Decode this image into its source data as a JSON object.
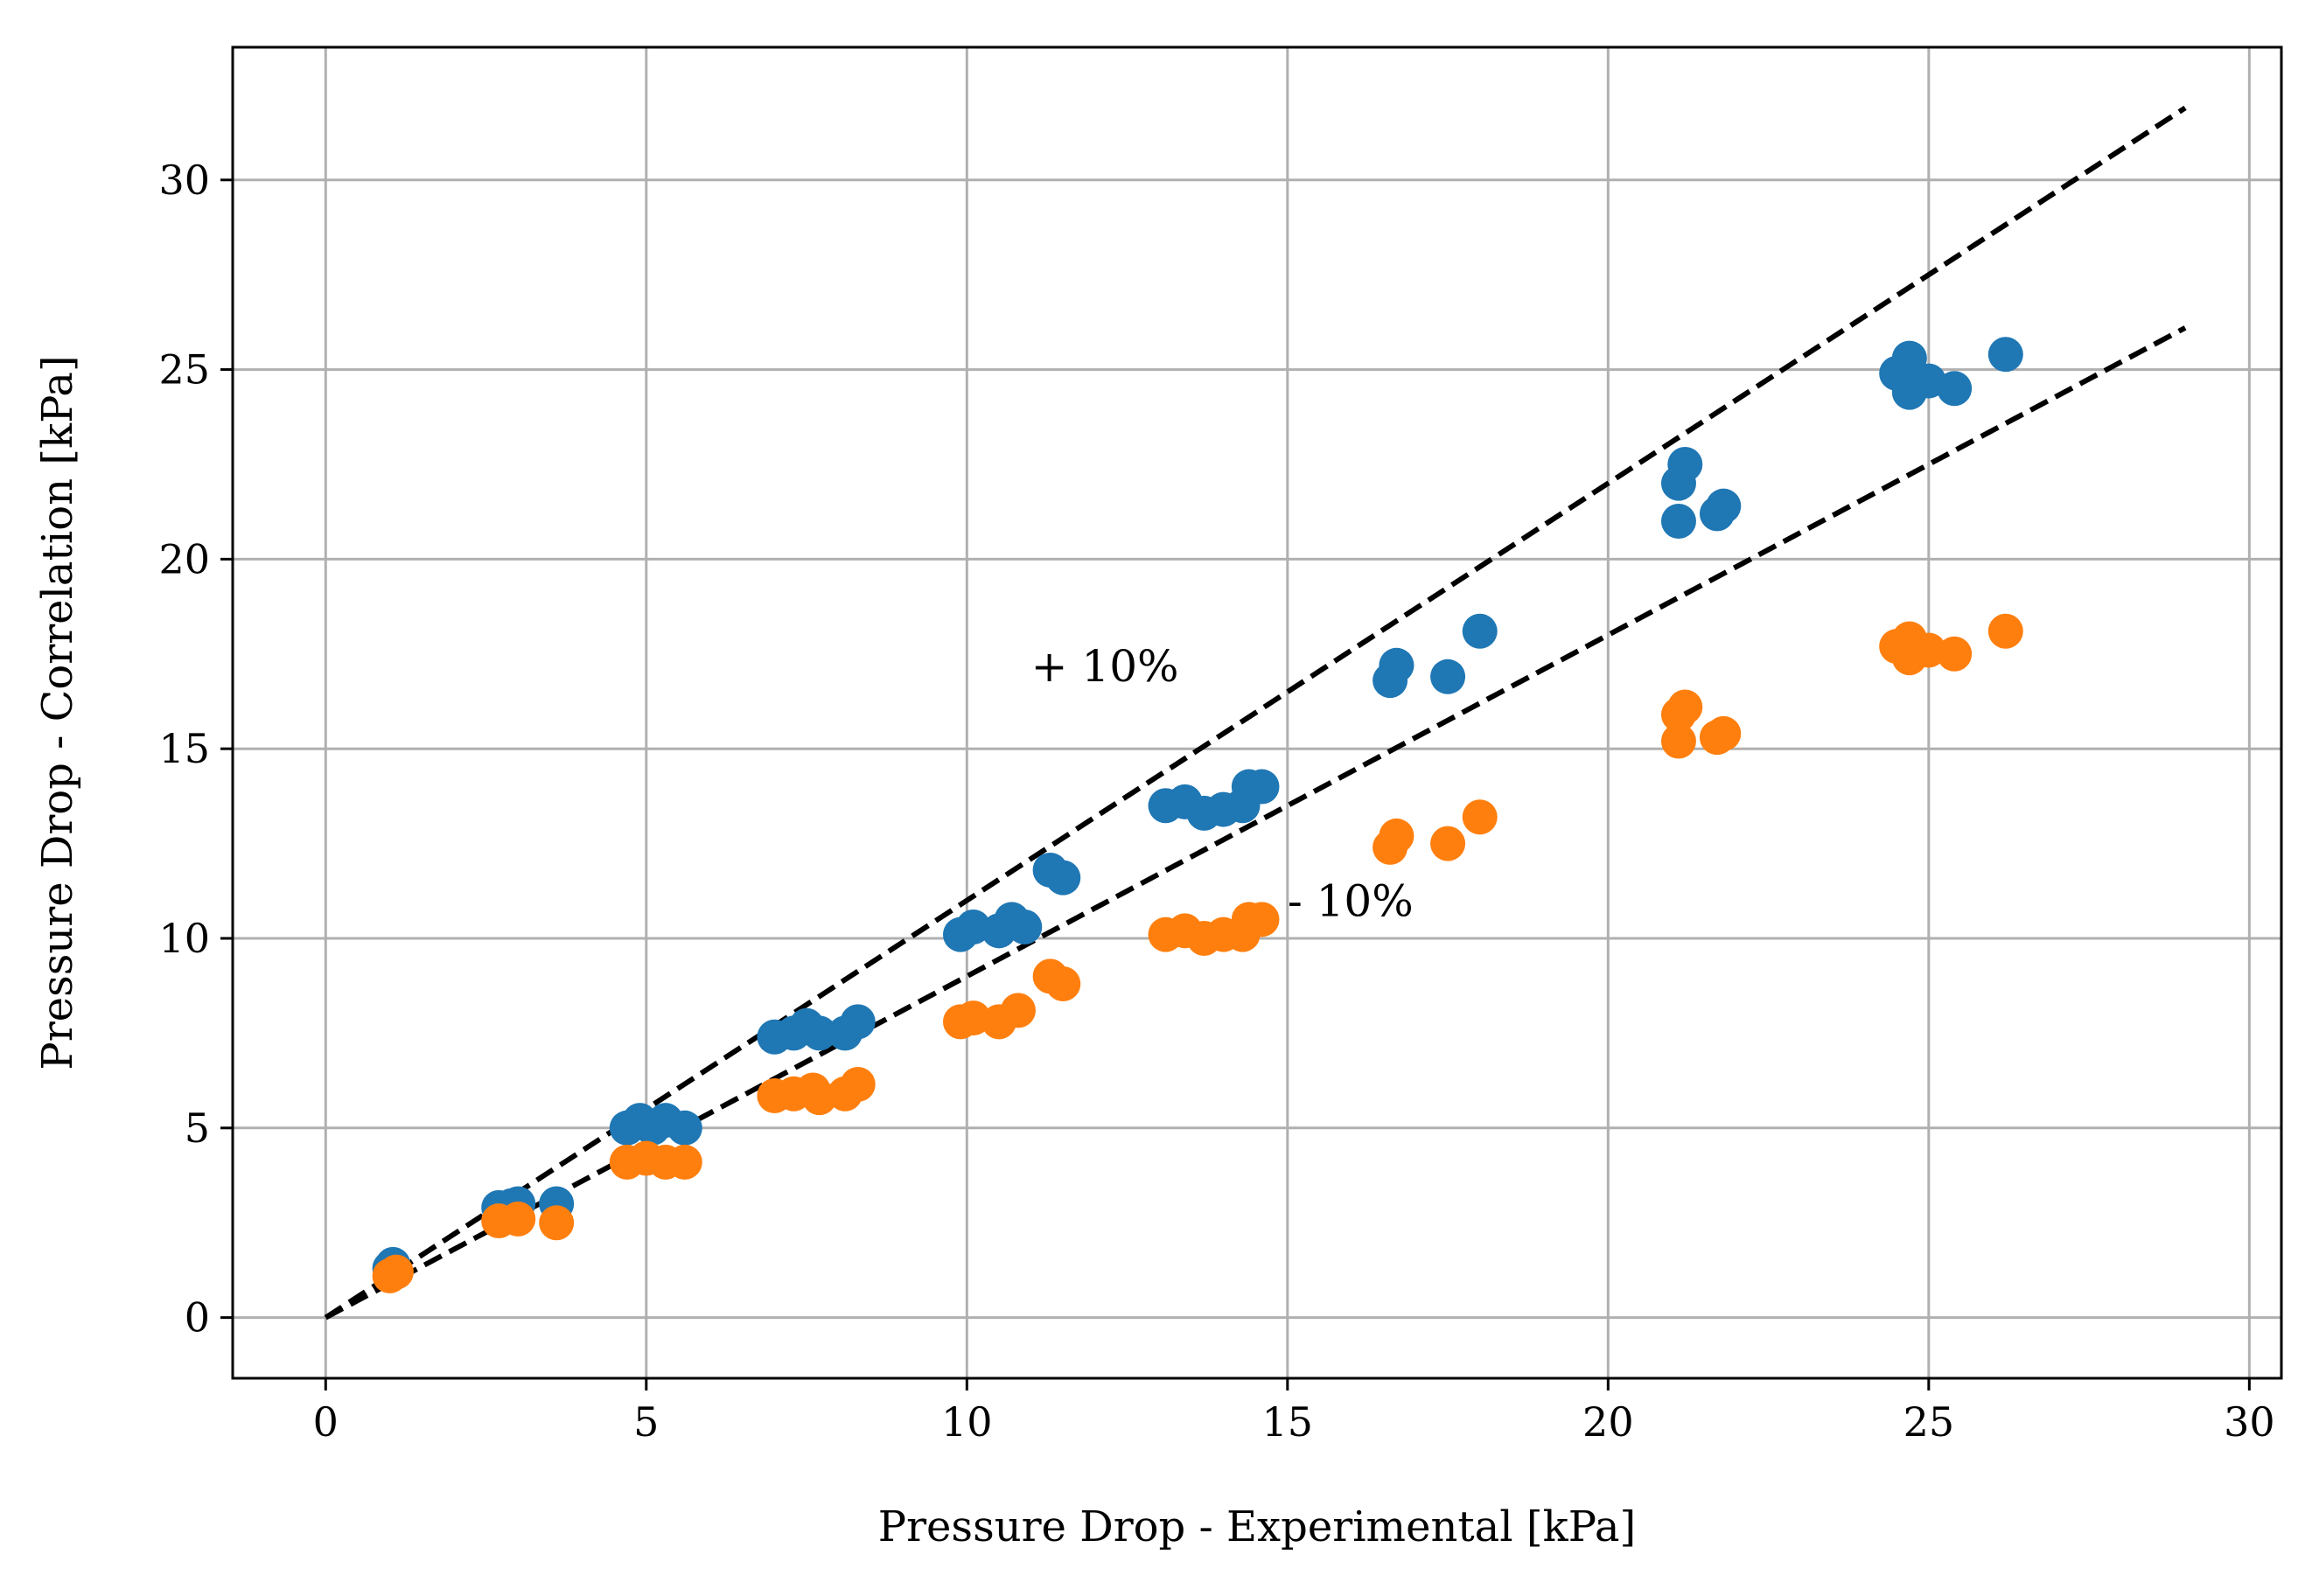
{
  "chart_data": {
    "type": "scatter",
    "xlabel": "Pressure Drop - Experimental [kPa]",
    "ylabel": "Pressure Drop - Correlation [kPa]",
    "xlim": [
      -1.45,
      30.5
    ],
    "ylim": [
      -1.6,
      33.5
    ],
    "xticks": [
      0,
      5,
      10,
      15,
      20,
      25,
      30
    ],
    "yticks": [
      0,
      5,
      10,
      15,
      20,
      25,
      30
    ],
    "grid": true,
    "series": [
      {
        "color": "#1f77b4",
        "points": [
          [
            1.0,
            1.3
          ],
          [
            1.05,
            1.4
          ],
          [
            2.7,
            2.9
          ],
          [
            2.9,
            2.95
          ],
          [
            3.0,
            3.0
          ],
          [
            3.6,
            3.0
          ],
          [
            4.7,
            5.0
          ],
          [
            4.9,
            5.2
          ],
          [
            5.1,
            5.0
          ],
          [
            5.3,
            5.2
          ],
          [
            5.6,
            5.0
          ],
          [
            7.0,
            7.4
          ],
          [
            7.3,
            7.5
          ],
          [
            7.5,
            7.7
          ],
          [
            7.7,
            7.5
          ],
          [
            8.1,
            7.5
          ],
          [
            8.3,
            7.8
          ],
          [
            9.9,
            10.1
          ],
          [
            10.1,
            10.3
          ],
          [
            10.5,
            10.2
          ],
          [
            10.7,
            10.5
          ],
          [
            10.9,
            10.3
          ],
          [
            11.3,
            11.8
          ],
          [
            11.5,
            11.6
          ],
          [
            13.1,
            13.5
          ],
          [
            13.4,
            13.6
          ],
          [
            13.7,
            13.3
          ],
          [
            14.0,
            13.4
          ],
          [
            14.3,
            13.5
          ],
          [
            14.4,
            14.0
          ],
          [
            14.6,
            14.0
          ],
          [
            16.6,
            16.8
          ],
          [
            16.7,
            17.2
          ],
          [
            17.5,
            16.9
          ],
          [
            18.0,
            18.1
          ],
          [
            21.1,
            21.0
          ],
          [
            21.1,
            22.0
          ],
          [
            21.2,
            22.5
          ],
          [
            21.7,
            21.2
          ],
          [
            21.8,
            21.4
          ],
          [
            24.5,
            24.9
          ],
          [
            24.7,
            24.4
          ],
          [
            24.7,
            25.3
          ],
          [
            25.0,
            24.7
          ],
          [
            25.4,
            24.5
          ],
          [
            26.2,
            25.4
          ]
        ]
      },
      {
        "color": "#ff7f0e",
        "points": [
          [
            1.0,
            1.1
          ],
          [
            1.1,
            1.2
          ],
          [
            2.7,
            2.55
          ],
          [
            3.0,
            2.6
          ],
          [
            3.6,
            2.5
          ],
          [
            4.7,
            4.1
          ],
          [
            5.0,
            4.2
          ],
          [
            5.3,
            4.1
          ],
          [
            5.6,
            4.1
          ],
          [
            7.0,
            5.85
          ],
          [
            7.3,
            5.9
          ],
          [
            7.6,
            6.0
          ],
          [
            7.7,
            5.8
          ],
          [
            8.1,
            5.9
          ],
          [
            8.3,
            6.15
          ],
          [
            9.9,
            7.8
          ],
          [
            10.1,
            7.9
          ],
          [
            10.5,
            7.8
          ],
          [
            10.8,
            8.1
          ],
          [
            11.3,
            9.0
          ],
          [
            11.5,
            8.8
          ],
          [
            13.1,
            10.1
          ],
          [
            13.4,
            10.2
          ],
          [
            13.7,
            10.0
          ],
          [
            14.0,
            10.1
          ],
          [
            14.3,
            10.1
          ],
          [
            14.4,
            10.5
          ],
          [
            14.6,
            10.5
          ],
          [
            16.6,
            12.4
          ],
          [
            16.7,
            12.7
          ],
          [
            17.5,
            12.5
          ],
          [
            18.0,
            13.2
          ],
          [
            21.1,
            15.2
          ],
          [
            21.1,
            15.9
          ],
          [
            21.2,
            16.1
          ],
          [
            21.7,
            15.3
          ],
          [
            21.8,
            15.4
          ],
          [
            24.5,
            17.7
          ],
          [
            24.7,
            17.4
          ],
          [
            24.7,
            17.9
          ],
          [
            25.0,
            17.6
          ],
          [
            25.4,
            17.5
          ],
          [
            26.2,
            18.1
          ]
        ]
      }
    ],
    "lines": [
      {
        "style": "dashed",
        "color": "#000000",
        "x": [
          0,
          29
        ],
        "y": [
          0,
          31.9
        ]
      },
      {
        "style": "dashed",
        "color": "#000000",
        "x": [
          0,
          29
        ],
        "y": [
          0,
          26.1
        ]
      }
    ],
    "annotations": [
      {
        "text": "+ 10%",
        "x": 11.0,
        "y": 17.2
      },
      {
        "text": "- 10%",
        "x": 15.0,
        "y": 11.0
      }
    ]
  }
}
